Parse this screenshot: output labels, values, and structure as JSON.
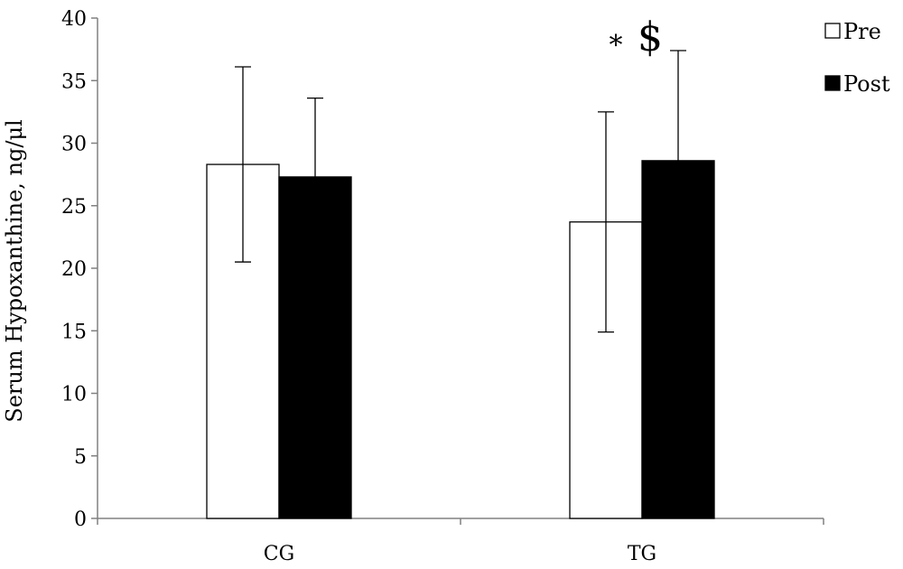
{
  "chart_data": {
    "type": "bar",
    "title": "",
    "xlabel": "",
    "ylabel": "Serum Hypoxanthine, ng/μl",
    "ylim": [
      0,
      40
    ],
    "yticks": [
      0,
      5,
      10,
      15,
      20,
      25,
      30,
      35,
      40
    ],
    "categories": [
      "CG",
      "TG"
    ],
    "series": [
      {
        "name": "Pre",
        "values": [
          28.3,
          23.7
        ],
        "error": [
          7.8,
          8.8
        ],
        "color": "#ffffff"
      },
      {
        "name": "Post",
        "values": [
          27.3,
          28.6
        ],
        "error": [
          6.3,
          8.8
        ],
        "color": "#000000"
      }
    ],
    "grid": false,
    "legend_position": "top-right",
    "annotations": [
      "*",
      "$"
    ]
  }
}
